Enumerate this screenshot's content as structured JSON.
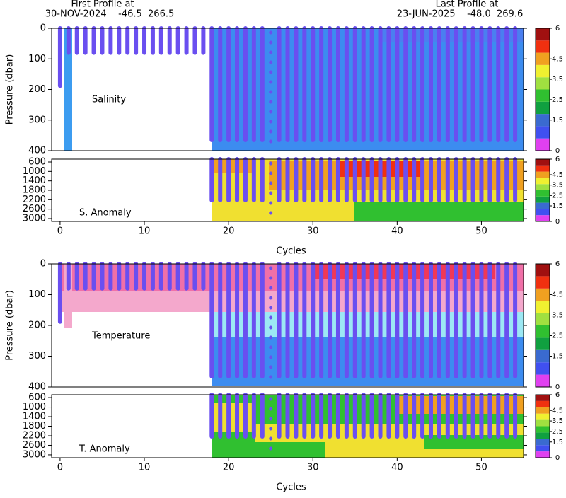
{
  "header": {
    "first_label": "First Profile at",
    "first_info": "30-NOV-2024    -46.5  266.5",
    "last_label": "Last Profile at",
    "last_info": "23-JUN-2025    -48.0  269.6"
  },
  "chart_data": [
    {
      "type": "section",
      "label": "Salinity",
      "y_label": "Pressure (dbar)",
      "xlim": [
        -1,
        55
      ],
      "ylim": [
        0,
        400
      ],
      "yticks": [
        0,
        100,
        200,
        300,
        400
      ],
      "colorbar_ticks": [
        0,
        1.5,
        2.5,
        3.5,
        4.5,
        6
      ]
    },
    {
      "type": "section",
      "label": "S. Anomaly",
      "x_label": "Cycles",
      "xlim": [
        -1,
        55
      ],
      "xticks": [
        0,
        10,
        20,
        30,
        40,
        50
      ],
      "ylim": [
        480,
        3120
      ],
      "yticks": [
        600,
        1000,
        1400,
        1800,
        2200,
        2600,
        3000
      ],
      "colorbar_ticks": [
        0,
        1.5,
        2.5,
        3.5,
        4.5,
        6
      ]
    },
    {
      "type": "section",
      "label": "Temperature",
      "y_label": "Pressure (dbar)",
      "xlim": [
        -1,
        55
      ],
      "ylim": [
        0,
        400
      ],
      "yticks": [
        0,
        100,
        200,
        300,
        400
      ],
      "colorbar_ticks": [
        0,
        1.5,
        2.5,
        3.5,
        4.5,
        6
      ]
    },
    {
      "type": "section",
      "label": "T. Anomaly",
      "x_label": "Cycles",
      "xlim": [
        -1,
        55
      ],
      "xticks": [
        0,
        10,
        20,
        30,
        40,
        50
      ],
      "ylim": [
        480,
        3120
      ],
      "yticks": [
        600,
        1000,
        1400,
        1800,
        2200,
        2600,
        3000
      ],
      "colorbar_ticks": [
        0,
        1.5,
        2.5,
        3.5,
        4.5,
        6
      ]
    }
  ],
  "colorbar_colors": [
    "#e040f0",
    "#4050f0",
    "#3a6ad0",
    "#10a040",
    "#30c030",
    "#a0e040",
    "#f0f030",
    "#f0a020",
    "#f03010",
    "#a01010"
  ]
}
